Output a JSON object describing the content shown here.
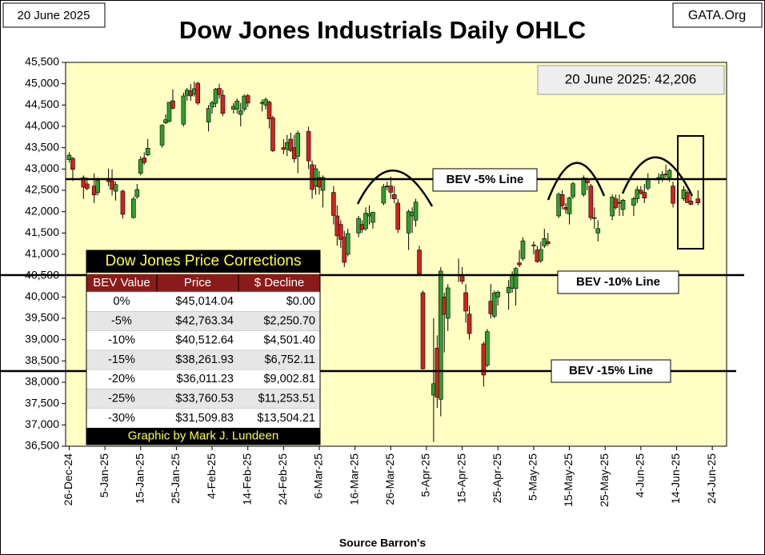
{
  "chart_data": {
    "type": "ohlc",
    "title": "Dow Jones Industrials Daily OHLC",
    "date_label": "20 June 2025",
    "source": "GATA.Org",
    "annotation": "20 June 2025: 42,206",
    "xlabel": "Source Barron's",
    "up_color": "#2f9e2f",
    "down_color": "#d42020",
    "background": "#ffffc4",
    "xlim": [
      "2024-12-25",
      "2025-06-28"
    ],
    "xticks": [
      {
        "value": "2024-12-26",
        "label": "26-Dec-24"
      },
      {
        "value": "2025-01-05",
        "label": "5-Jan-25"
      },
      {
        "value": "2025-01-15",
        "label": "15-Jan-25"
      },
      {
        "value": "2025-01-25",
        "label": "25-Jan-25"
      },
      {
        "value": "2025-02-04",
        "label": "4-Feb-25"
      },
      {
        "value": "2025-02-14",
        "label": "14-Feb-25"
      },
      {
        "value": "2025-02-24",
        "label": "24-Feb-25"
      },
      {
        "value": "2025-03-06",
        "label": "6-Mar-25"
      },
      {
        "value": "2025-03-16",
        "label": "16-Mar-25"
      },
      {
        "value": "2025-03-26",
        "label": "26-Mar-25"
      },
      {
        "value": "2025-04-05",
        "label": "5-Apr-25"
      },
      {
        "value": "2025-04-15",
        "label": "15-Apr-25"
      },
      {
        "value": "2025-04-25",
        "label": "25-Apr-25"
      },
      {
        "value": "2025-05-05",
        "label": "5-May-25"
      },
      {
        "value": "2025-05-15",
        "label": "15-May-25"
      },
      {
        "value": "2025-05-25",
        "label": "25-May-25"
      },
      {
        "value": "2025-06-04",
        "label": "4-Jun-25"
      },
      {
        "value": "2025-06-14",
        "label": "14-Jun-25"
      },
      {
        "value": "2025-06-24",
        "label": "24-Jun-25"
      }
    ],
    "ylim": [
      36500,
      45500
    ],
    "yticks": [
      {
        "value": 36500,
        "label": "36,500"
      },
      {
        "value": 37000,
        "label": "37,000"
      },
      {
        "value": 37500,
        "label": "37,500"
      },
      {
        "value": 38000,
        "label": "38,000"
      },
      {
        "value": 38500,
        "label": "38,500"
      },
      {
        "value": 39000,
        "label": "39,000"
      },
      {
        "value": 39500,
        "label": "39,500"
      },
      {
        "value": 40000,
        "label": "40,000"
      },
      {
        "value": 40500,
        "label": "40,500"
      },
      {
        "value": 41000,
        "label": "41,000"
      },
      {
        "value": 41500,
        "label": "41,500"
      },
      {
        "value": 42000,
        "label": "42,000"
      },
      {
        "value": 42500,
        "label": "42,500"
      },
      {
        "value": 43000,
        "label": "43,000"
      },
      {
        "value": 43500,
        "label": "43,500"
      },
      {
        "value": 44000,
        "label": "44,000"
      },
      {
        "value": 44500,
        "label": "44,500"
      },
      {
        "value": 45000,
        "label": "45,000"
      },
      {
        "value": 45500,
        "label": "45,500"
      }
    ],
    "ref_lines": [
      {
        "label": "BEV -5% Line",
        "value": 42763.34
      },
      {
        "label": "BEV -10% Line",
        "value": 40512.64
      },
      {
        "label": "BEV -15% Line",
        "value": 38261.93
      }
    ],
    "x": [
      "2024-12-26",
      "2024-12-27",
      "2024-12-30",
      "2024-12-31",
      "2025-01-02",
      "2025-01-03",
      "2025-01-06",
      "2025-01-07",
      "2025-01-08",
      "2025-01-10",
      "2025-01-13",
      "2025-01-14",
      "2025-01-15",
      "2025-01-16",
      "2025-01-17",
      "2025-01-21",
      "2025-01-22",
      "2025-01-23",
      "2025-01-24",
      "2025-01-27",
      "2025-01-28",
      "2025-01-29",
      "2025-01-30",
      "2025-01-31",
      "2025-02-03",
      "2025-02-04",
      "2025-02-05",
      "2025-02-06",
      "2025-02-07",
      "2025-02-10",
      "2025-02-11",
      "2025-02-12",
      "2025-02-13",
      "2025-02-14",
      "2025-02-18",
      "2025-02-19",
      "2025-02-20",
      "2025-02-21",
      "2025-02-24",
      "2025-02-25",
      "2025-02-26",
      "2025-02-27",
      "2025-02-28",
      "2025-03-03",
      "2025-03-04",
      "2025-03-05",
      "2025-03-06",
      "2025-03-07",
      "2025-03-10",
      "2025-03-11",
      "2025-03-12",
      "2025-03-13",
      "2025-03-14",
      "2025-03-17",
      "2025-03-18",
      "2025-03-19",
      "2025-03-20",
      "2025-03-21",
      "2025-03-24",
      "2025-03-25",
      "2025-03-26",
      "2025-03-27",
      "2025-03-28",
      "2025-03-31",
      "2025-04-01",
      "2025-04-02",
      "2025-04-03",
      "2025-04-04",
      "2025-04-07",
      "2025-04-08",
      "2025-04-09",
      "2025-04-10",
      "2025-04-11",
      "2025-04-14",
      "2025-04-15",
      "2025-04-16",
      "2025-04-17",
      "2025-04-21",
      "2025-04-22",
      "2025-04-23",
      "2025-04-24",
      "2025-04-25",
      "2025-04-28",
      "2025-04-29",
      "2025-04-30",
      "2025-05-01",
      "2025-05-02",
      "2025-05-05",
      "2025-05-06",
      "2025-05-07",
      "2025-05-08",
      "2025-05-09",
      "2025-05-12",
      "2025-05-13",
      "2025-05-14",
      "2025-05-15",
      "2025-05-16",
      "2025-05-19",
      "2025-05-20",
      "2025-05-21",
      "2025-05-22",
      "2025-05-23",
      "2025-05-27",
      "2025-05-28",
      "2025-05-29",
      "2025-05-30",
      "2025-06-02",
      "2025-06-03",
      "2025-06-04",
      "2025-06-05",
      "2025-06-06",
      "2025-06-09",
      "2025-06-10",
      "2025-06-11",
      "2025-06-12",
      "2025-06-13",
      "2025-06-16",
      "2025-06-17",
      "2025-06-18",
      "2025-06-20"
    ],
    "open": [
      43220,
      43250,
      42800,
      42650,
      42600,
      42450,
      42780,
      42720,
      42480,
      42480,
      41860,
      42350,
      42900,
      43260,
      43330,
      43560,
      44080,
      44120,
      44600,
      44050,
      44730,
      44830,
      44760,
      45010,
      44100,
      44450,
      44540,
      44890,
      44730,
      44400,
      44400,
      44280,
      44400,
      44720,
      44560,
      44500,
      44570,
      44200,
      43500,
      43460,
      43700,
      43500,
      43300,
      43880,
      43100,
      42600,
      42800,
      42500,
      42450,
      41900,
      41700,
      41400,
      41000,
      41500,
      41700,
      41600,
      41900,
      41750,
      42200,
      42600,
      42600,
      42400,
      42200,
      41500,
      41900,
      41800,
      41100,
      40100,
      37700,
      38800,
      37600,
      40000,
      39500,
      40500,
      40500,
      40100,
      39600,
      38900,
      38400,
      39900,
      39550,
      40000,
      40100,
      40200,
      40200,
      40800,
      40900,
      41200,
      41100,
      40850,
      41200,
      41300,
      41900,
      42400,
      42100,
      41950,
      42350,
      42400,
      42750,
      42600,
      41850,
      41500,
      41900,
      42300,
      42200,
      42050,
      42150,
      42300,
      42500,
      42450,
      42550,
      42800,
      42780,
      42880,
      42800,
      42600,
      42300,
      42450,
      42250,
      42300
    ],
    "high": [
      43390,
      43280,
      42850,
      42800,
      42900,
      42800,
      43010,
      42990,
      42700,
      42520,
      42350,
      42650,
      43300,
      43390,
      43700,
      44050,
      44280,
      44570,
      44870,
      44790,
      44900,
      44990,
      45050,
      45050,
      44500,
      44600,
      44900,
      45000,
      44860,
      44550,
      44650,
      44550,
      44750,
      44760,
      44630,
      44680,
      44600,
      44250,
      43700,
      43800,
      43850,
      43800,
      43900,
      43990,
      43200,
      43100,
      42950,
      42850,
      42600,
      42150,
      41800,
      41550,
      41600,
      41900,
      41800,
      42100,
      42150,
      42000,
      42650,
      42700,
      42820,
      42600,
      42300,
      42050,
      42100,
      42300,
      41200,
      40150,
      39500,
      39100,
      40700,
      40100,
      40300,
      40900,
      40700,
      40300,
      39800,
      38950,
      39250,
      40300,
      40150,
      40150,
      40400,
      40600,
      40700,
      41100,
      41400,
      41300,
      41200,
      41300,
      41600,
      41500,
      42450,
      42500,
      42200,
      42350,
      42700,
      42850,
      42800,
      42650,
      42100,
      41800,
      42400,
      42400,
      42400,
      42300,
      42350,
      42600,
      42600,
      42650,
      42900,
      42900,
      42950,
      43100,
      43000,
      42700,
      42600,
      42500,
      42450,
      42500
    ],
    "low": [
      43150,
      42720,
      42300,
      42500,
      42200,
      42380,
      42600,
      42380,
      42260,
      41840,
      41840,
      42300,
      42850,
      43100,
      43300,
      43500,
      44050,
      44090,
      44400,
      44000,
      44600,
      44600,
      44700,
      44500,
      43880,
      44300,
      44450,
      44650,
      44240,
      44300,
      44300,
      44000,
      44350,
      44450,
      44350,
      44400,
      43950,
      43400,
      43350,
      43300,
      43400,
      43150,
      42900,
      43000,
      42300,
      42400,
      42400,
      42100,
      41700,
      41200,
      41150,
      40700,
      40950,
      41400,
      41500,
      41550,
      41700,
      41600,
      42150,
      42500,
      42300,
      42200,
      41500,
      41100,
      41500,
      41650,
      40500,
      38300,
      36600,
      37400,
      37200,
      38700,
      39200,
      40350,
      40300,
      39400,
      39000,
      37900,
      38350,
      39500,
      39500,
      39800,
      39700,
      40100,
      39800,
      40700,
      40850,
      41000,
      40800,
      40800,
      41150,
      41200,
      41850,
      42050,
      41950,
      41700,
      42300,
      42350,
      42500,
      41800,
      41600,
      41300,
      41800,
      42050,
      41900,
      41900,
      41900,
      42200,
      42400,
      42200,
      42500,
      42650,
      42700,
      42800,
      42700,
      42100,
      42250,
      42200,
      42150,
      42150
    ],
    "close": [
      43325,
      42992,
      42574,
      42544,
      42392,
      42732,
      42706,
      42528,
      42635,
      41938,
      42297,
      42518,
      43221,
      43153,
      43488,
      44025,
      44156,
      44565,
      44424,
      44713,
      44850,
      44714,
      44882,
      44545,
      44421,
      44556,
      44873,
      44747,
      44303,
      44470,
      44593,
      44368,
      44711,
      44546,
      44556,
      44627,
      44176,
      43428,
      43461,
      43621,
      43433,
      43239,
      43841,
      43191,
      42521,
      43006,
      42579,
      42802,
      41912,
      41433,
      41350,
      40813,
      41488,
      41841,
      41582,
      41965,
      41953,
      41985,
      42583,
      42588,
      42455,
      42300,
      41584,
      42002,
      41989,
      42225,
      40546,
      38315,
      37966,
      37646,
      40608,
      39594,
      40213,
      40525,
      40368,
      39669,
      39142,
      38170,
      39187,
      39607,
      40093,
      40114,
      40228,
      40528,
      40669,
      40753,
      41317,
      41219,
      40829,
      41114,
      41368,
      41249,
      42410,
      42140,
      42051,
      42323,
      42655,
      42792,
      42677,
      41860,
      41859,
      41603,
      42343,
      42098,
      42216,
      42270,
      42305,
      42520,
      42427,
      42319,
      42763,
      42762,
      42867,
      42865,
      42968,
      42197,
      42515,
      42215,
      42172,
      42206
    ]
  },
  "table": {
    "title": "Dow Jones Price Corrections",
    "columns": [
      "BEV Value",
      "Price",
      "$ Decline"
    ],
    "rows": [
      [
        "0%",
        "$45,014.04",
        "$0.00"
      ],
      [
        "-5%",
        "$42,763.34",
        "$2,250.70"
      ],
      [
        "-10%",
        "$40,512.64",
        "$4,501.40"
      ],
      [
        "-15%",
        "$38,261.93",
        "$6,752.11"
      ],
      [
        "-20%",
        "$36,011.23",
        "$9,002.81"
      ],
      [
        "-25%",
        "$33,760.53",
        "$11,253.51"
      ],
      [
        "-30%",
        "$31,509.83",
        "$13,504.21"
      ]
    ],
    "footer": "Graphic by Mark J. Lundeen"
  }
}
